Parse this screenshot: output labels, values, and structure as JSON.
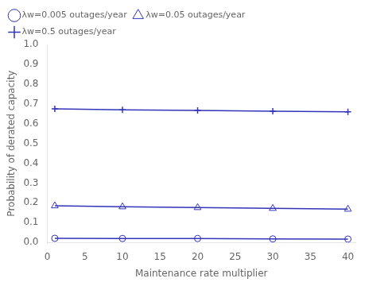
{
  "chart_data": {
    "type": "line",
    "x_label": "Maintenance rate multiplier",
    "y_label": "Probability of derated capacity",
    "x": [
      1,
      10,
      20,
      30,
      40
    ],
    "series": [
      {
        "name": "λw=0.005 outages/year",
        "color": "#3333bb",
        "marker": "circle",
        "values": [
          0.021,
          0.02,
          0.02,
          0.018,
          0.017
        ]
      },
      {
        "name": "λw=0.05 outages/year",
        "color": "#3333bb",
        "marker": "triangle",
        "values": [
          0.185,
          0.18,
          0.176,
          0.172,
          0.168
        ]
      },
      {
        "name": "λw=0.5 outages/year",
        "color": "#3333bb",
        "marker": "plus",
        "values": [
          0.675,
          0.67,
          0.667,
          0.663,
          0.66
        ]
      }
    ],
    "xlim": [
      0,
      41
    ],
    "xticks": [
      0,
      5,
      10,
      15,
      20,
      25,
      30,
      35,
      40
    ],
    "ylim": [
      0,
      1
    ],
    "yticks": [
      {
        "value": 0,
        "label": "0.0"
      },
      0.1,
      0.2,
      0.3,
      0.4,
      0.5,
      0.6,
      0.7,
      0.8,
      0.9,
      {
        "value": 1.0,
        "label": "1.0"
      }
    ],
    "grid": false,
    "legend": "upper left"
  }
}
